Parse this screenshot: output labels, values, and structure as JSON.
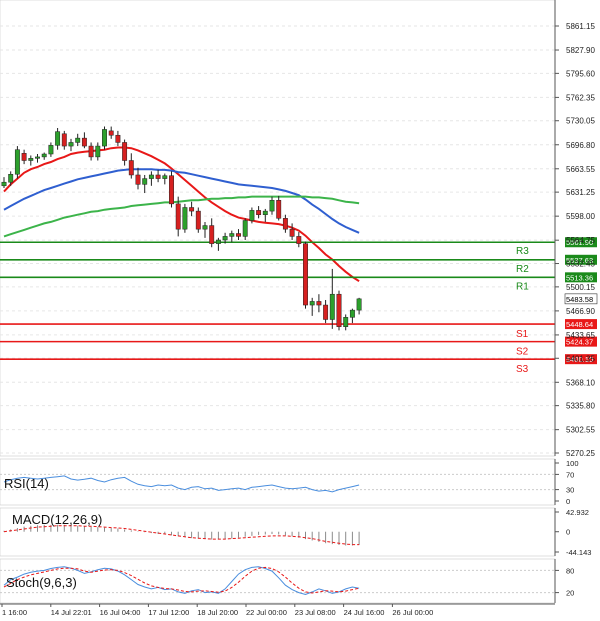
{
  "chart_data": [
    {
      "type": "candlestick",
      "panel": "price",
      "price_axis_ticks": [
        "5861.15",
        "5827.90",
        "5795.60",
        "5762.35",
        "5730.05",
        "5696.80",
        "5663.55",
        "5631.25",
        "5598.00",
        "5564.75",
        "5532.45",
        "5500.15",
        "5466.90",
        "5433.65",
        "5401.35",
        "5368.10",
        "5335.80",
        "5302.55",
        "5270.25"
      ],
      "ylim": [
        5270.25,
        5861.15
      ],
      "levels": [
        {
          "name": "R3",
          "value": 5561.9,
          "label": "5561.90",
          "color": "#1a8a1a"
        },
        {
          "name": "R2",
          "value": 5537.63,
          "label": "5537.63",
          "color": "#1a8a1a"
        },
        {
          "name": "R1",
          "value": 5513.36,
          "label": "5513.36",
          "color": "#1a8a1a"
        },
        {
          "name": "S1",
          "value": 5448.64,
          "label": "5448.64",
          "color": "#e81818"
        },
        {
          "name": "S2",
          "value": 5424.37,
          "label": "5424.37",
          "color": "#e81818"
        },
        {
          "name": "S3",
          "value": 5400.1,
          "label": "5400.10",
          "color": "#e81818"
        }
      ],
      "current_price": {
        "value": 5483.58,
        "label": "5483.58"
      },
      "candles": [
        [
          5640,
          5652,
          5637,
          5645
        ],
        [
          5645,
          5660,
          5640,
          5656
        ],
        [
          5656,
          5695,
          5650,
          5690
        ],
        [
          5685,
          5690,
          5670,
          5675
        ],
        [
          5675,
          5682,
          5668,
          5678
        ],
        [
          5678,
          5684,
          5672,
          5680
        ],
        [
          5680,
          5686,
          5676,
          5684
        ],
        [
          5684,
          5700,
          5680,
          5696
        ],
        [
          5696,
          5720,
          5690,
          5715
        ],
        [
          5712,
          5716,
          5690,
          5695
        ],
        [
          5695,
          5705,
          5688,
          5700
        ],
        [
          5700,
          5712,
          5695,
          5706
        ],
        [
          5706,
          5714,
          5692,
          5695
        ],
        [
          5695,
          5700,
          5675,
          5680
        ],
        [
          5680,
          5700,
          5675,
          5695
        ],
        [
          5695,
          5722,
          5690,
          5718
        ],
        [
          5716,
          5722,
          5705,
          5710
        ],
        [
          5710,
          5716,
          5695,
          5700
        ],
        [
          5700,
          5704,
          5668,
          5675
        ],
        [
          5675,
          5685,
          5650,
          5655
        ],
        [
          5655,
          5665,
          5635,
          5642
        ],
        [
          5642,
          5655,
          5630,
          5650
        ],
        [
          5650,
          5660,
          5640,
          5655
        ],
        [
          5655,
          5662,
          5645,
          5650
        ],
        [
          5650,
          5657,
          5642,
          5654
        ],
        [
          5654,
          5660,
          5610,
          5615
        ],
        [
          5615,
          5625,
          5570,
          5580
        ],
        [
          5580,
          5615,
          5575,
          5610
        ],
        [
          5610,
          5618,
          5598,
          5605
        ],
        [
          5605,
          5610,
          5575,
          5580
        ],
        [
          5580,
          5590,
          5568,
          5585
        ],
        [
          5585,
          5595,
          5555,
          5560
        ],
        [
          5560,
          5568,
          5550,
          5565
        ],
        [
          5565,
          5575,
          5560,
          5570
        ],
        [
          5570,
          5578,
          5562,
          5574
        ],
        [
          5574,
          5580,
          5565,
          5570
        ],
        [
          5570,
          5595,
          5565,
          5592
        ],
        [
          5592,
          5610,
          5588,
          5606
        ],
        [
          5606,
          5612,
          5595,
          5600
        ],
        [
          5600,
          5608,
          5590,
          5605
        ],
        [
          5605,
          5625,
          5600,
          5620
        ],
        [
          5620,
          5626,
          5592,
          5595
        ],
        [
          5595,
          5600,
          5575,
          5580
        ],
        [
          5580,
          5588,
          5565,
          5570
        ],
        [
          5570,
          5576,
          5555,
          5560
        ],
        [
          5560,
          5563,
          5470,
          5475
        ],
        [
          5475,
          5485,
          5460,
          5480
        ],
        [
          5480,
          5490,
          5465,
          5475
        ],
        [
          5475,
          5482,
          5450,
          5455
        ],
        [
          5455,
          5525,
          5442,
          5490
        ],
        [
          5490,
          5495,
          5440,
          5445
        ],
        [
          5445,
          5462,
          5440,
          5458
        ],
        [
          5458,
          5470,
          5450,
          5468
        ],
        [
          5468,
          5485,
          5462,
          5483.58
        ]
      ],
      "moving_averages": [
        {
          "color": "#e81818",
          "values": [
            5632,
            5642,
            5650,
            5658,
            5663,
            5666,
            5670,
            5673,
            5677,
            5680,
            5684,
            5686,
            5687,
            5688,
            5689,
            5690,
            5692,
            5693,
            5693,
            5692,
            5689,
            5685,
            5681,
            5676,
            5671,
            5664,
            5656,
            5648,
            5640,
            5632,
            5624,
            5617,
            5611,
            5605,
            5600,
            5596,
            5594,
            5592,
            5590,
            5589,
            5588,
            5587,
            5585,
            5582,
            5578,
            5571,
            5562,
            5554,
            5545,
            5538,
            5529,
            5521,
            5514,
            5508
          ]
        },
        {
          "color": "#2f5fd0",
          "values": [
            5607,
            5612,
            5617,
            5622,
            5626,
            5630,
            5634,
            5637,
            5640,
            5643,
            5646,
            5649,
            5651,
            5653,
            5655,
            5657,
            5659,
            5661,
            5662,
            5663,
            5663,
            5663,
            5663,
            5662,
            5662,
            5661,
            5659,
            5658,
            5656,
            5654,
            5652,
            5650,
            5648,
            5646,
            5644,
            5642,
            5641,
            5640,
            5639,
            5638,
            5637,
            5635,
            5633,
            5630,
            5627,
            5621,
            5614,
            5608,
            5601,
            5594,
            5588,
            5583,
            5579,
            5575
          ]
        },
        {
          "color": "#3cb44a",
          "values": [
            5570,
            5573,
            5576,
            5579,
            5582,
            5585,
            5588,
            5590,
            5593,
            5596,
            5598,
            5600,
            5602,
            5604,
            5605,
            5607,
            5608,
            5609,
            5610,
            5612,
            5613,
            5614,
            5615,
            5616,
            5617,
            5617,
            5618,
            5619,
            5620,
            5620,
            5621,
            5622,
            5622,
            5623,
            5623,
            5624,
            5624,
            5625,
            5625,
            5625,
            5625,
            5625,
            5625,
            5625,
            5625,
            5625,
            5624,
            5624,
            5623,
            5622,
            5620,
            5618,
            5617,
            5616
          ]
        }
      ]
    },
    {
      "type": "line",
      "panel": "rsi",
      "label": "RSI(14)",
      "axis_ticks": [
        "100",
        "70",
        "30",
        "0"
      ],
      "ylim": [
        0,
        100
      ],
      "series": [
        {
          "color": "#4a8ede",
          "values": [
            50,
            56,
            60,
            62,
            60,
            58,
            60,
            62,
            64,
            66,
            58,
            55,
            57,
            60,
            54,
            50,
            56,
            60,
            62,
            52,
            44,
            40,
            38,
            42,
            40,
            42,
            34,
            30,
            36,
            38,
            32,
            34,
            28,
            30,
            32,
            34,
            30,
            36,
            38,
            40,
            42,
            38,
            34,
            32,
            34,
            36,
            30,
            26,
            28,
            24,
            30,
            34,
            38,
            42
          ]
        }
      ]
    },
    {
      "type": "bar",
      "panel": "macd",
      "label": "MACD(12,26,9)",
      "axis_ticks": [
        "42.932",
        "0",
        "-44.143"
      ],
      "ylim": [
        -44.143,
        42.932
      ],
      "histogram": [
        2,
        5,
        8,
        11,
        13,
        14,
        15,
        15,
        15,
        15,
        14,
        13,
        12,
        11,
        10,
        9,
        8,
        7,
        5,
        3,
        1,
        -1,
        -3,
        -5,
        -6,
        -8,
        -10,
        -12,
        -14,
        -15,
        -16,
        -17,
        -17,
        -16,
        -15,
        -13,
        -11,
        -9,
        -7,
        -6,
        -5,
        -6,
        -8,
        -10,
        -13,
        -16,
        -19,
        -22,
        -25,
        -27,
        -29,
        -30,
        -30,
        -29
      ],
      "signal": [
        0,
        2,
        4,
        6,
        8,
        10,
        11,
        12,
        13,
        13,
        13,
        13,
        12,
        12,
        11,
        10,
        9,
        8,
        7,
        5,
        3,
        1,
        -1,
        -3,
        -5,
        -7,
        -9,
        -11,
        -13,
        -14,
        -15,
        -16,
        -16,
        -16,
        -15,
        -14,
        -13,
        -12,
        -11,
        -10,
        -9,
        -9,
        -9,
        -10,
        -11,
        -13,
        -15,
        -18,
        -21,
        -23,
        -25,
        -27,
        -28,
        -28
      ],
      "colors": {
        "histogram": "#8a8a8a",
        "signal": "#e81818"
      }
    },
    {
      "type": "line",
      "panel": "stoch",
      "label": "Stoch(9,6,3)",
      "axis_ticks": [
        "80",
        "20"
      ],
      "ylim": [
        0,
        100
      ],
      "series": [
        {
          "color": "#4a8ede",
          "values": [
            40,
            55,
            62,
            70,
            75,
            78,
            80,
            85,
            88,
            90,
            86,
            80,
            72,
            76,
            82,
            86,
            84,
            78,
            68,
            55,
            42,
            35,
            30,
            34,
            28,
            30,
            22,
            18,
            25,
            28,
            20,
            22,
            18,
            30,
            50,
            70,
            82,
            88,
            90,
            85,
            78,
            60,
            40,
            28,
            20,
            15,
            22,
            30,
            25,
            18,
            22,
            30,
            35,
            32
          ]
        },
        {
          "color": "#e81818",
          "values": [
            35,
            45,
            55,
            62,
            68,
            72,
            76,
            80,
            84,
            86,
            86,
            84,
            78,
            75,
            78,
            81,
            82,
            80,
            74,
            66,
            56,
            46,
            38,
            34,
            31,
            30,
            27,
            23,
            22,
            24,
            25,
            23,
            21,
            24,
            34,
            48,
            64,
            78,
            86,
            88,
            85,
            76,
            62,
            46,
            32,
            22,
            19,
            22,
            25,
            24,
            22,
            24,
            28,
            32
          ]
        }
      ]
    }
  ],
  "x_tick_labels": [
    "1 16:00",
    "14 Jul 22:01",
    "16 Jul 04:00",
    "17 Jul 12:00",
    "18 Jul 20:00",
    "22 Jul 00:00",
    "23 Jul 08:00",
    "24 Jul 16:00",
    "26 Jul 00:00"
  ]
}
